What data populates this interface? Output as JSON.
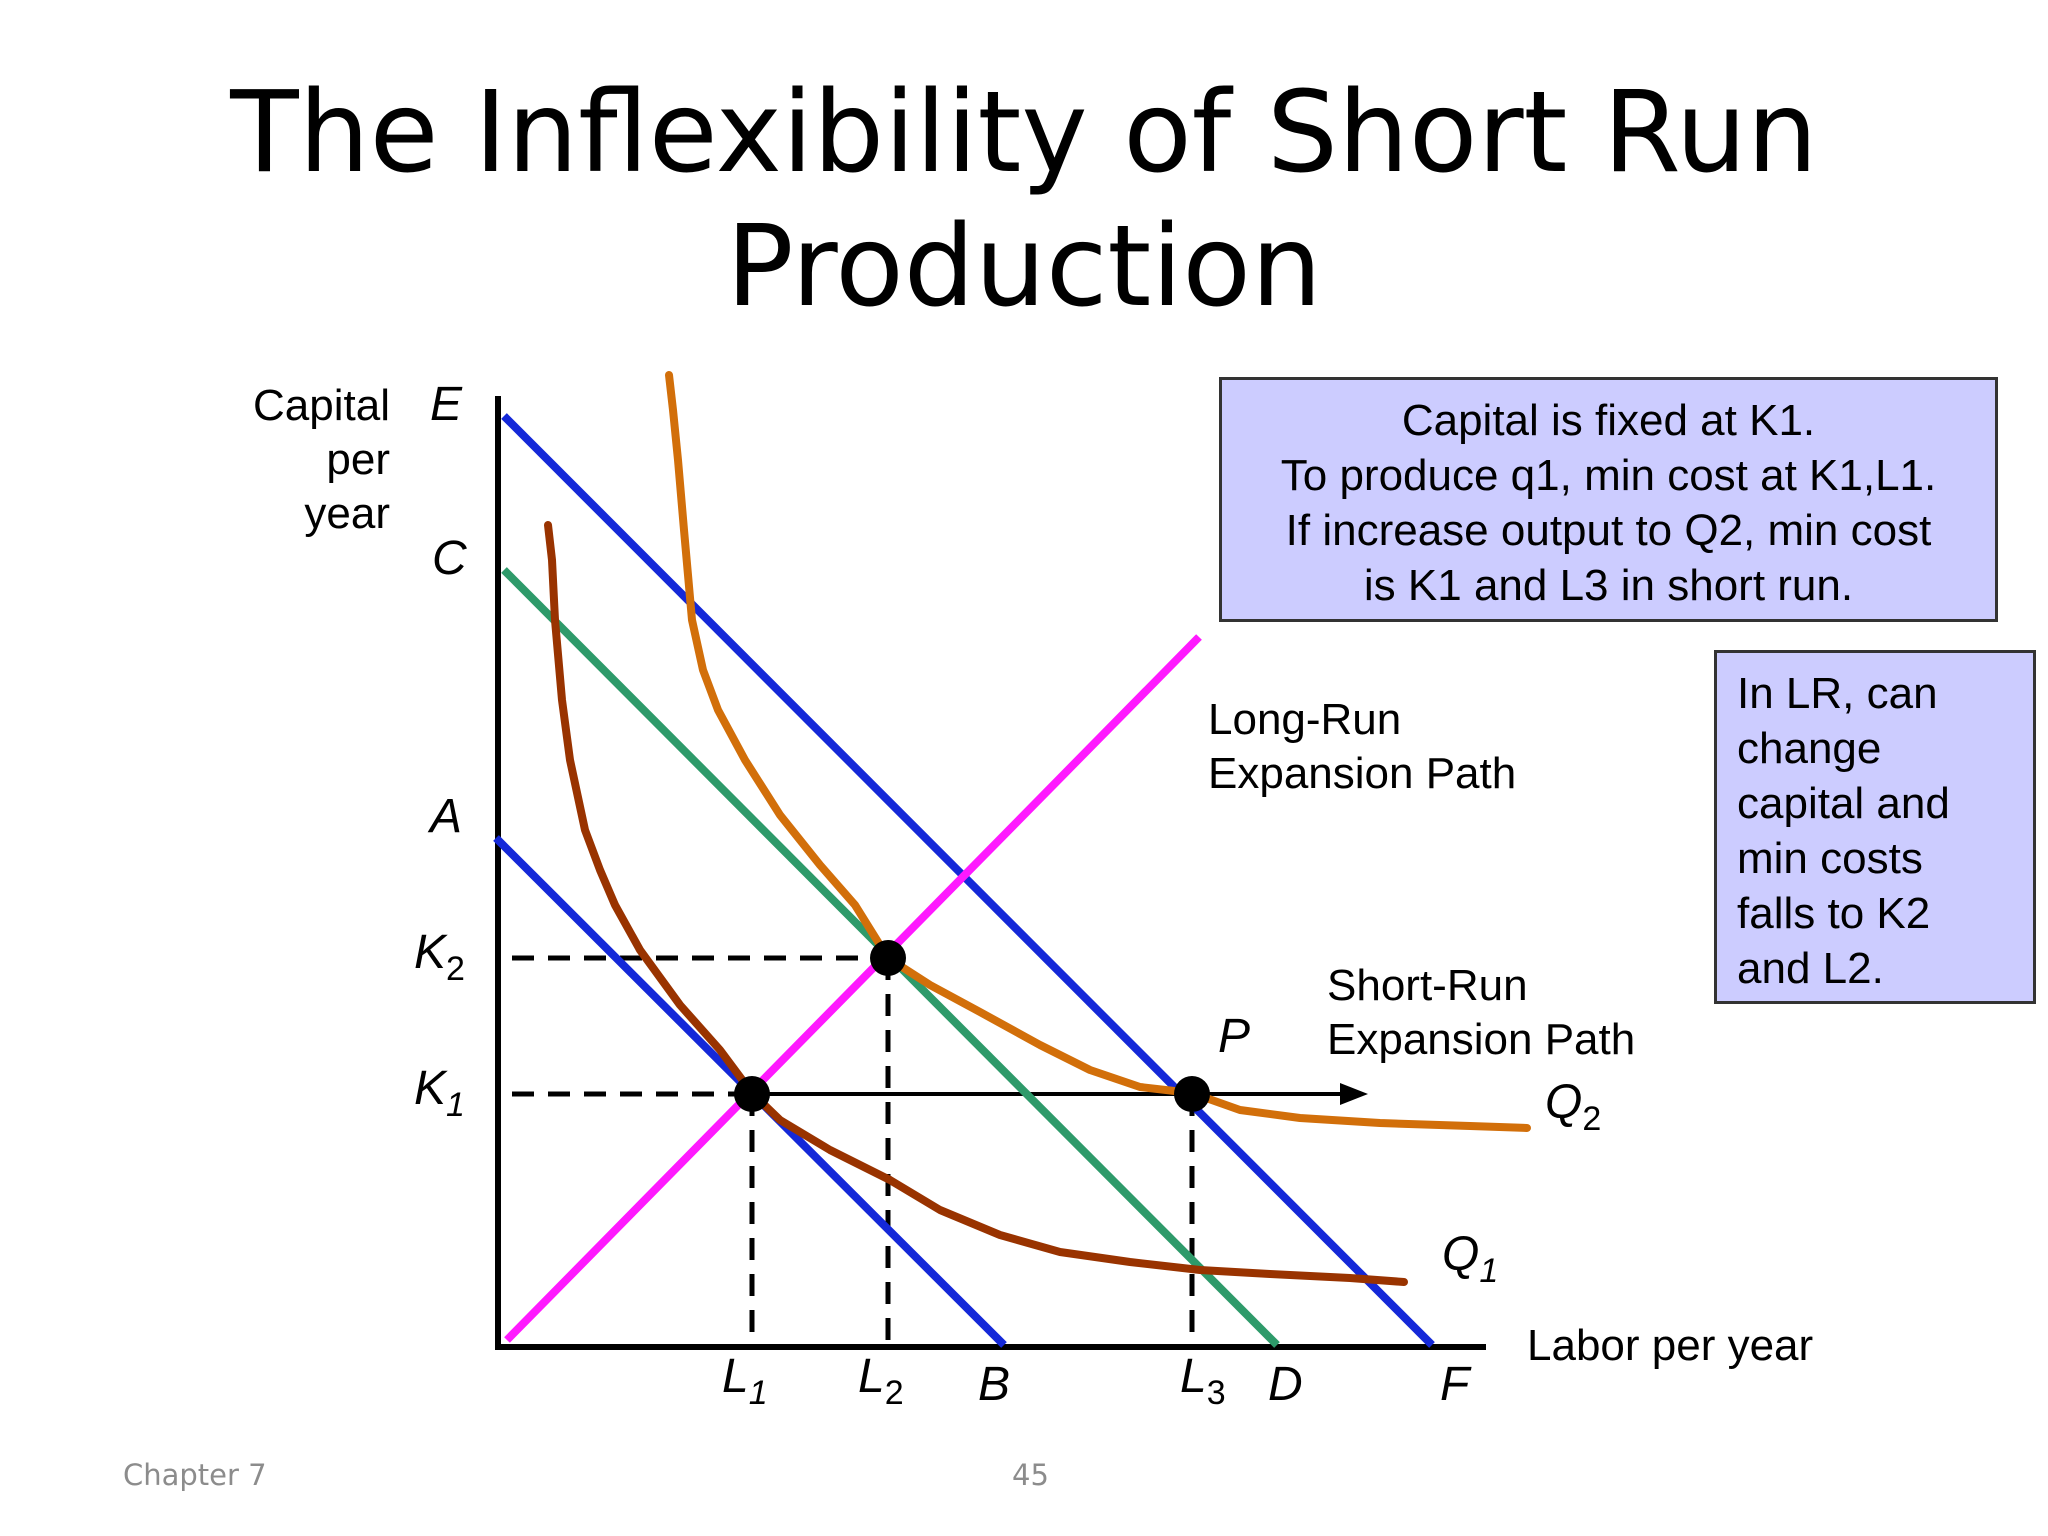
{
  "slide": {
    "title_line1": "The Inflexibility of Short Run",
    "title_line2": "Production",
    "footer_left": "Chapter 7",
    "footer_page": "45"
  },
  "info_box_1": {
    "lines": [
      "Capital is fixed at K1.",
      "To produce q1, min cost at K1,L1.",
      "If increase output to Q2, min cost",
      "is K1 and L3 in short run."
    ]
  },
  "info_box_2": {
    "lines": [
      "In LR, can",
      "change",
      "capital and",
      "min costs",
      "falls to K2",
      "and L2."
    ]
  },
  "diagram": {
    "y_axis_label": [
      "Capital",
      "per",
      "year"
    ],
    "x_axis_label": "Labor per year",
    "y_ticks": {
      "E": "E",
      "C": "C",
      "A": "A",
      "K2": "K",
      "K2_sub": "2",
      "K1": "K",
      "K1_sub": "1"
    },
    "x_ticks": {
      "L1": "L",
      "L1_sub": "1",
      "L2": "L",
      "L2_sub": "2",
      "B": "B",
      "L3": "L",
      "L3_sub": "3",
      "D": "D",
      "F": "F"
    },
    "curve_labels": {
      "Q1": "Q",
      "Q1_sub": "1",
      "Q2": "Q",
      "Q2_sub": "2",
      "P": "P"
    },
    "path_labels": {
      "long_run": [
        "Long-Run",
        "Expansion Path"
      ],
      "short_run": [
        "Short-Run",
        "Expansion Path"
      ]
    },
    "colors": {
      "isocost_AB": "#1428d8",
      "isocost_CD": "#2e9a6a",
      "isocost_EF": "#1428d8",
      "long_run_path": "#ff19ff",
      "isoquant_Q1": "#993300",
      "isoquant_Q2": "#d26f0a",
      "info_box": "#ccccff"
    }
  }
}
